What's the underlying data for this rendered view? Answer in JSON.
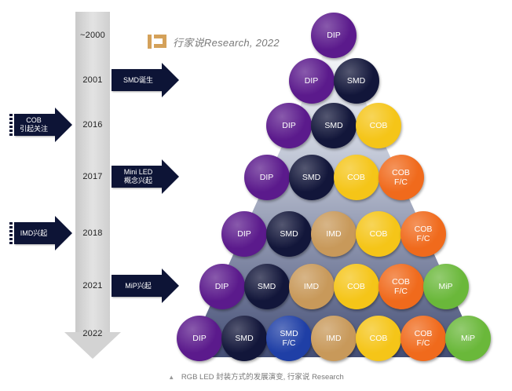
{
  "brand": {
    "text": "行家说Research, 2022"
  },
  "timeline": {
    "years": [
      "~2000",
      "2001",
      "2016",
      "2017",
      "2018",
      "2021",
      "2022"
    ]
  },
  "events": [
    {
      "key": "smd-birth",
      "label": "SMD诞生",
      "side": "right",
      "year": "2001"
    },
    {
      "key": "cob-attention",
      "label": "COB\n引起关注",
      "side": "left",
      "year": "2016"
    },
    {
      "key": "mini-led",
      "label": "Mini LED\n概念兴起",
      "side": "right",
      "year": "2017"
    },
    {
      "key": "imd-rise",
      "label": "IMD兴起",
      "side": "left",
      "year": "2018"
    },
    {
      "key": "mip-rise",
      "label": "MiP兴起",
      "side": "right",
      "year": "2021"
    }
  ],
  "colors": {
    "DIP": "#5b1a8c",
    "SMD": "#12163a",
    "COB": "#f5c518",
    "COB F/C": "#f06a1c",
    "IMD": "#c8995a",
    "MiP": "#6ab83a",
    "SMD F/C": "#1f3fa6",
    "arrow": "#0d1436"
  },
  "pyramid": {
    "rows": [
      [
        "DIP"
      ],
      [
        "DIP",
        "SMD"
      ],
      [
        "DIP",
        "SMD",
        "COB"
      ],
      [
        "DIP",
        "SMD",
        "COB",
        "COB\nF/C"
      ],
      [
        "DIP",
        "SMD",
        "IMD",
        "COB",
        "COB\nF/C"
      ],
      [
        "DIP",
        "SMD",
        "IMD",
        "COB",
        "COB\nF/C",
        "MiP"
      ],
      [
        "DIP",
        "SMD",
        "SMD\nF/C",
        "IMD",
        "COB",
        "COB\nF/C",
        "MiP"
      ]
    ]
  },
  "caption": {
    "text": "RGB LED 封装方式的发展演变, 行家说 Research"
  }
}
